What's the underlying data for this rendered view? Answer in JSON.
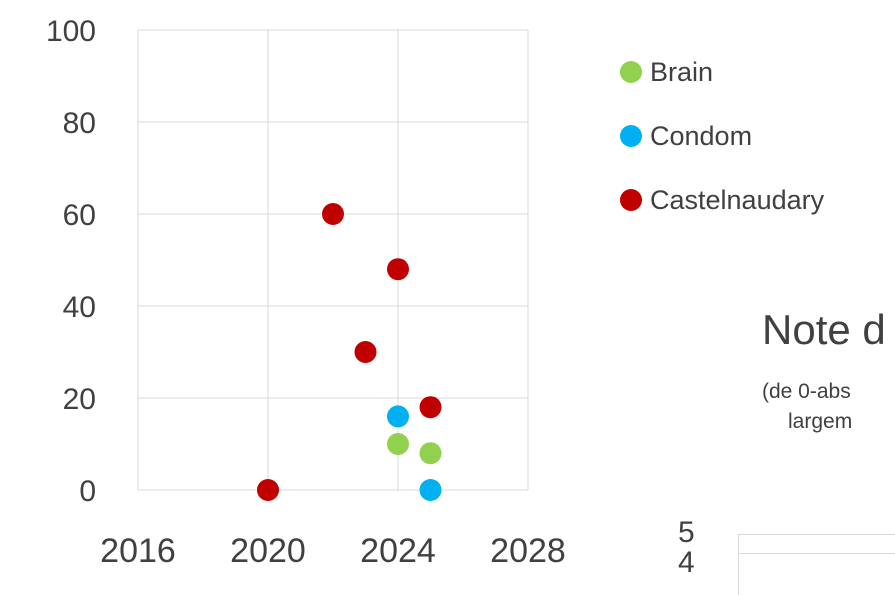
{
  "chart_data": [
    {
      "type": "scatter",
      "title": "",
      "xlabel": "",
      "ylabel": "",
      "xlim": [
        2016,
        2028
      ],
      "ylim": [
        0,
        100
      ],
      "x_ticks": [
        "2016",
        "2020",
        "2024",
        "2028"
      ],
      "y_ticks": [
        "0",
        "20",
        "40",
        "60",
        "80",
        "100"
      ],
      "grid": true,
      "legend": "right",
      "series": [
        {
          "name": "Brain",
          "color": "#92d050",
          "points": [
            [
              2024,
              10
            ],
            [
              2025,
              8
            ]
          ]
        },
        {
          "name": "Condom",
          "color": "#00b0f0",
          "points": [
            [
              2024,
              16
            ],
            [
              2025,
              0
            ]
          ]
        },
        {
          "name": "Castelnaudary",
          "color": "#c00000",
          "points": [
            [
              2020,
              0
            ],
            [
              2022,
              60
            ],
            [
              2023,
              30
            ],
            [
              2024,
              48
            ],
            [
              2025,
              18
            ]
          ]
        }
      ]
    },
    {
      "type": "scatter",
      "title": "Note d",
      "subtitle_lines": [
        "(de 0-abs",
        "largem"
      ],
      "y_ticks": [
        "5",
        "4"
      ]
    }
  ]
}
